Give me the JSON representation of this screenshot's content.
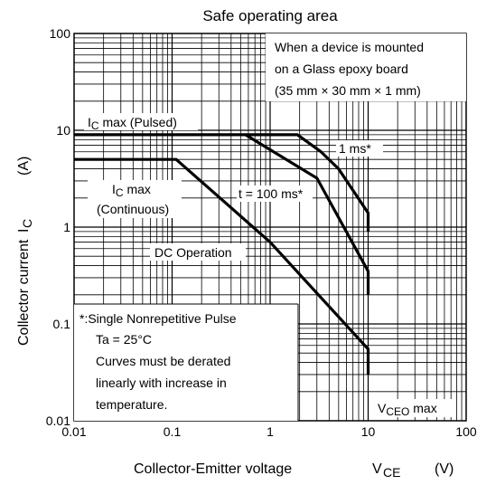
{
  "chart_data": {
    "type": "line",
    "title": "Safe operating area",
    "x_scale": "log",
    "y_scale": "log",
    "xlim": [
      0.01,
      100
    ],
    "ylim": [
      0.01,
      100
    ],
    "grid": true,
    "x_ticks": [
      {
        "value": 0.01,
        "label": "0.01"
      },
      {
        "value": 0.1,
        "label": "0.1"
      },
      {
        "value": 1,
        "label": "1"
      },
      {
        "value": 10,
        "label": "10"
      },
      {
        "value": 100,
        "label": "100"
      }
    ],
    "y_ticks": [
      {
        "value": 0.01,
        "label": "0.01"
      },
      {
        "value": 0.1,
        "label": "0.1"
      },
      {
        "value": 1,
        "label": "1"
      },
      {
        "value": 10,
        "label": "10"
      },
      {
        "value": 100,
        "label": "100"
      }
    ],
    "xlabel": {
      "main": "Collector-Emitter voltage",
      "symbol": "V",
      "sub": "CE",
      "unit": "(V)"
    },
    "ylabel": {
      "main": "Collector current",
      "symbol": "I",
      "sub": "C",
      "unit": "(A)"
    },
    "series": [
      {
        "points": [
          [
            0.01,
            9
          ],
          [
            1.9,
            9
          ],
          [
            3.3,
            6
          ],
          [
            5.0,
            4.0
          ],
          [
            10,
            1.4
          ],
          [
            10,
            0.9
          ]
        ]
      },
      {
        "points": [
          [
            0.56,
            9
          ],
          [
            3.0,
            3.2
          ],
          [
            10,
            0.35
          ],
          [
            10,
            0.2
          ]
        ]
      },
      {
        "points": [
          [
            0.01,
            5
          ],
          [
            0.11,
            5
          ],
          [
            1.0,
            0.7
          ],
          [
            10,
            0.055
          ],
          [
            10,
            0.03
          ]
        ]
      }
    ],
    "annotations": {
      "ic_max_pulsed": {
        "sym": "I",
        "sub": "C",
        "rest": " max (Pulsed)"
      },
      "ic_max_cont_line1": {
        "sym": "I",
        "sub": "C",
        "rest": " max"
      },
      "ic_max_cont_line2": "(Continuous)",
      "one_ms": "1 ms*",
      "t100ms": "t = 100 ms*",
      "dc_operation": "DC Operation",
      "vceo_max": {
        "sym": "V",
        "sub": "CEO",
        "rest": " max"
      },
      "mount_note": [
        "When a device is mounted",
        "on a Glass epoxy board",
        "(35 mm × 30 mm × 1 mm)"
      ],
      "pulse_note": [
        "*:Single Nonrepetitive Pulse",
        "Ta = 25°C",
        "Curves must be derated",
        "linearly with increase in",
        "temperature."
      ]
    }
  }
}
